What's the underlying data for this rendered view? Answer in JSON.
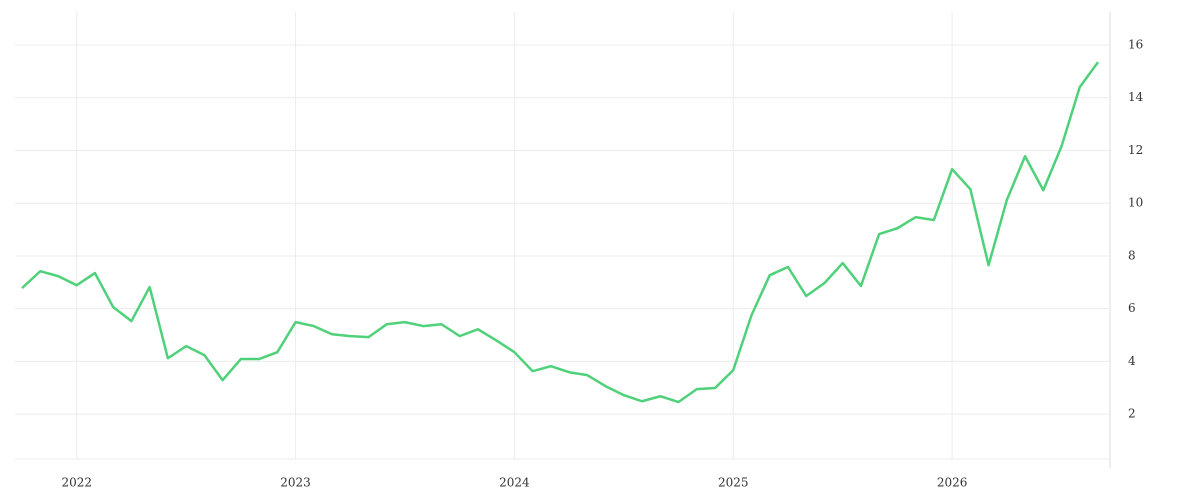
{
  "chart_data": {
    "type": "line",
    "x": [
      "2021-10",
      "2021-11",
      "2021-12",
      "2022-01",
      "2022-02",
      "2022-03",
      "2022-04",
      "2022-05",
      "2022-06",
      "2022-07",
      "2022-08",
      "2022-09",
      "2022-10",
      "2022-11",
      "2022-12",
      "2023-01",
      "2023-02",
      "2023-03",
      "2023-04",
      "2023-05",
      "2023-06",
      "2023-07",
      "2023-08",
      "2023-09",
      "2023-10",
      "2023-11",
      "2023-12",
      "2024-01",
      "2024-02",
      "2024-03",
      "2024-04",
      "2024-05",
      "2024-06",
      "2024-07",
      "2024-08",
      "2024-09",
      "2024-10",
      "2024-11",
      "2024-12",
      "2025-01",
      "2025-02",
      "2025-03",
      "2025-04",
      "2025-05",
      "2025-06",
      "2025-07",
      "2025-08",
      "2025-09",
      "2025-10",
      "2025-11",
      "2025-12",
      "2026-01",
      "2026-02",
      "2026-03",
      "2026-04",
      "2026-05",
      "2026-06",
      "2026-07",
      "2026-08",
      "2026-09"
    ],
    "series": [
      {
        "color": "#4fd17a",
        "values": [
          6.78,
          7.42,
          7.23,
          6.89,
          7.35,
          6.06,
          5.53,
          6.82,
          4.12,
          4.58,
          4.24,
          3.29,
          4.09,
          4.09,
          4.35,
          5.49,
          5.34,
          5.03,
          4.96,
          4.92,
          5.41,
          5.49,
          5.34,
          5.41,
          4.96,
          5.22,
          4.8,
          4.35,
          3.63,
          3.82,
          3.59,
          3.48,
          3.06,
          2.72,
          2.49,
          2.68,
          2.46,
          2.95,
          2.99,
          3.67,
          5.75,
          7.27,
          7.58,
          6.48,
          6.97,
          7.73,
          6.86,
          8.83,
          9.05,
          9.47,
          9.36,
          11.29,
          10.53,
          7.65,
          10.12,
          11.78,
          10.49,
          12.16,
          14.4,
          15.35
        ]
      }
    ],
    "ylim": [
      0.3,
      17.25
    ],
    "yticks": [
      2,
      4,
      6,
      8,
      10,
      12,
      14,
      16
    ],
    "xticks": [
      {
        "value": "2022-01",
        "label": "2022"
      },
      {
        "value": "2023-01",
        "label": "2023"
      },
      {
        "value": "2024-01",
        "label": "2024"
      },
      {
        "value": "2025-01",
        "label": "2025"
      },
      {
        "value": "2026-01",
        "label": "2026"
      }
    ],
    "grid": true
  }
}
